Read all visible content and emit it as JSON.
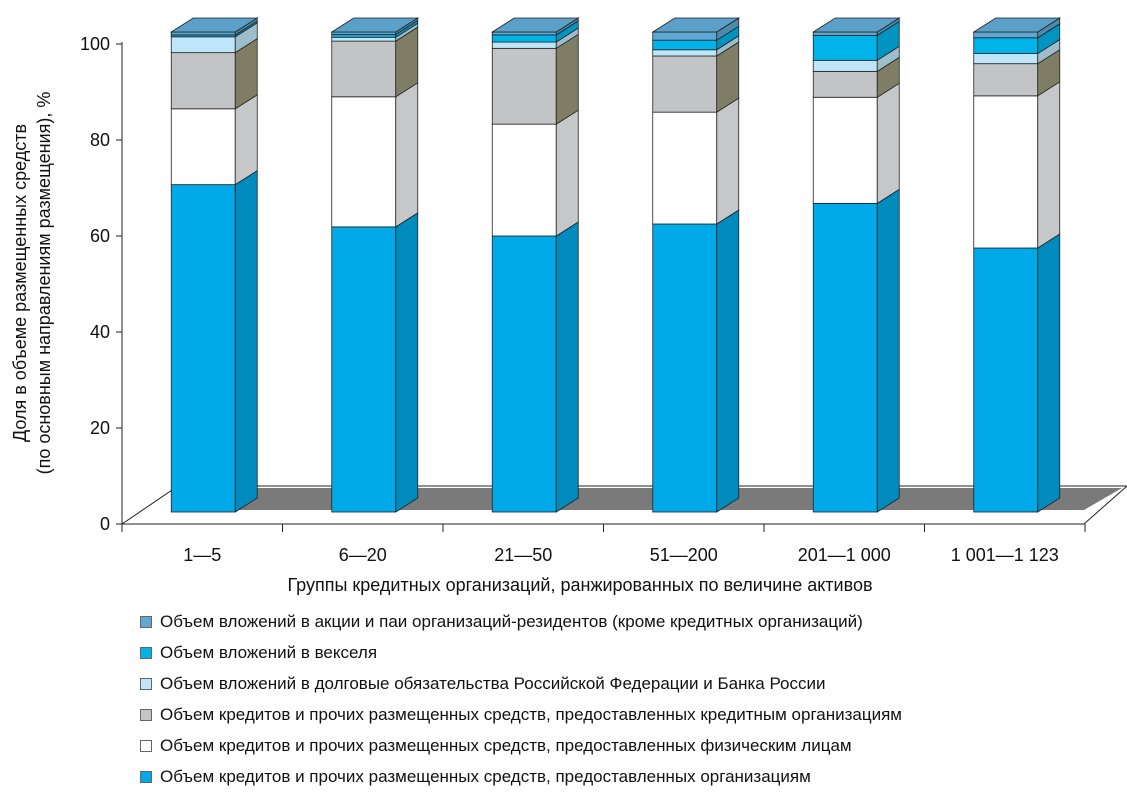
{
  "chart_data": {
    "type": "bar",
    "stacked": true,
    "three_d": true,
    "ylabel_line1": "Доля в объеме размещенных средств",
    "ylabel_line2": "(по основным направлениям размещения), %",
    "xlabel": "Группы кредитных организаций, ранжированных по величине активов",
    "ylim": [
      0,
      100
    ],
    "yticks": [
      "0",
      "20",
      "40",
      "60",
      "80",
      "100"
    ],
    "categories": [
      "1—5",
      "6—20",
      "21—50",
      "51—200",
      "201—1 000",
      "1 001—1 123"
    ],
    "series": [
      {
        "name": "Объем кредитов и прочих размещенных средств, предоставленных организациям",
        "color": "#00a9e8",
        "values": [
          68.2,
          59.4,
          57.5,
          60.0,
          64.3,
          55.0
        ]
      },
      {
        "name": "Объем кредитов и прочих размещенных средств, предоставленных физическим лицам",
        "color": "#ffffff",
        "values": [
          15.8,
          27.1,
          23.3,
          23.3,
          22.1,
          31.7
        ]
      },
      {
        "name": "Объем кредитов и прочих размещенных средств, предоставленных кредитным организациям",
        "color": "#c3c4c6",
        "values": [
          11.7,
          11.6,
          15.8,
          11.7,
          5.4,
          6.7
        ]
      },
      {
        "name": "Объем вложений в  долговые обязательства Российской Федерации и Банка России",
        "color": "#bfe6f8",
        "values": [
          3.3,
          0.8,
          1.3,
          1.3,
          2.3,
          2.1
        ]
      },
      {
        "name": "Объем вложений в векселя",
        "color": "#00b4ea",
        "values": [
          0.4,
          0.6,
          1.5,
          2.0,
          5.2,
          3.3
        ]
      },
      {
        "name": "Объем вложений в акции и паи организаций-резидентов (кроме кредитных организаций)",
        "color": "#5fa8d3",
        "values": [
          0.6,
          0.5,
          0.6,
          1.7,
          0.7,
          1.2
        ]
      }
    ],
    "legend_position": "bottom",
    "legend_order": [
      5,
      4,
      3,
      2,
      1,
      0
    ],
    "grid": false
  }
}
